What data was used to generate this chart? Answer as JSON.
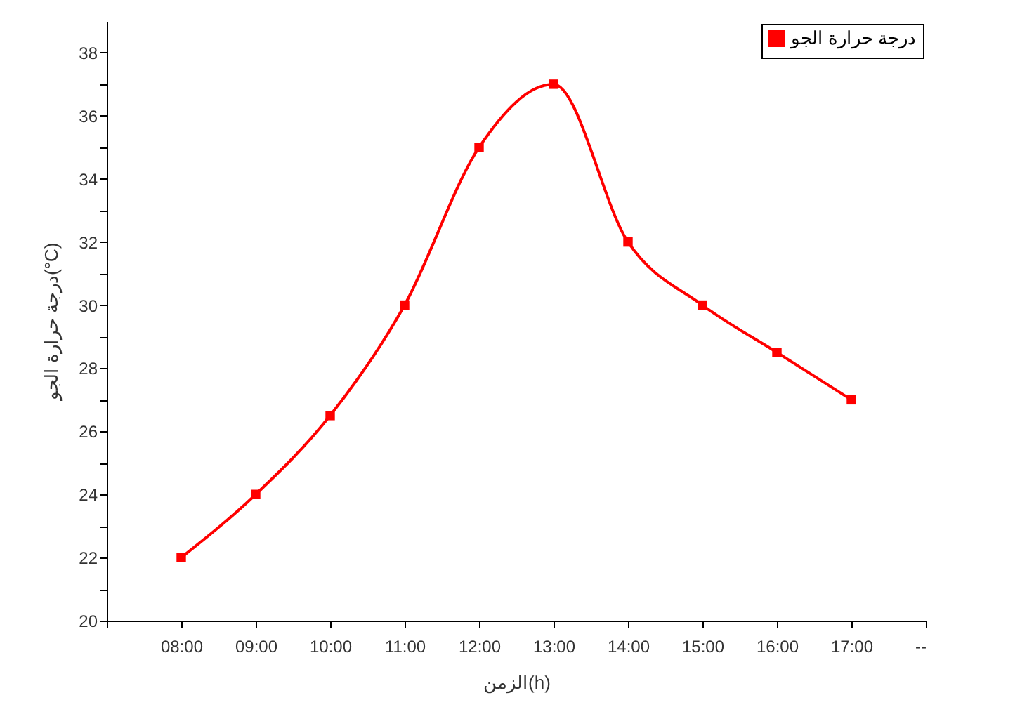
{
  "chart_data": {
    "type": "line",
    "x": [
      8,
      9,
      10,
      11,
      12,
      13,
      14,
      15,
      16,
      17
    ],
    "series": [
      {
        "name": "درجة حرارة الجو",
        "color": "#ff0000",
        "values": [
          22,
          24,
          26.5,
          30,
          35,
          37,
          32,
          30,
          28.5,
          27
        ]
      }
    ],
    "xlabel": "الزمن(h)",
    "ylabel": "درجة حرارة الجو(°C)",
    "xlim": [
      7,
      18
    ],
    "xticks": [
      {
        "value": 7,
        "label": null
      },
      {
        "value": 8,
        "label": "08:00"
      },
      {
        "value": 9,
        "label": "09:00"
      },
      {
        "value": 10,
        "label": "10:00"
      },
      {
        "value": 11,
        "label": "11:00"
      },
      {
        "value": 12,
        "label": "12:00"
      },
      {
        "value": 13,
        "label": "13:00"
      },
      {
        "value": 14,
        "label": "14:00"
      },
      {
        "value": 15,
        "label": "15:00"
      },
      {
        "value": 16,
        "label": "16:00"
      },
      {
        "value": 17,
        "label": "17:00"
      },
      {
        "value": 18,
        "label": "--"
      }
    ],
    "ylim": [
      20,
      39
    ],
    "yticks": [
      20,
      {
        "value": 21,
        "label": null
      },
      22,
      {
        "value": 23,
        "label": null
      },
      24,
      {
        "value": 25,
        "label": null
      },
      26,
      {
        "value": 27,
        "label": null
      },
      28,
      {
        "value": 29,
        "label": null
      },
      30,
      {
        "value": 31,
        "label": null
      },
      32,
      {
        "value": 33,
        "label": null
      },
      34,
      {
        "value": 35,
        "label": null
      },
      36,
      {
        "value": 37,
        "label": null
      },
      38
    ],
    "marker": "square",
    "line_style": "solid",
    "grid": false,
    "legend": "top right"
  }
}
